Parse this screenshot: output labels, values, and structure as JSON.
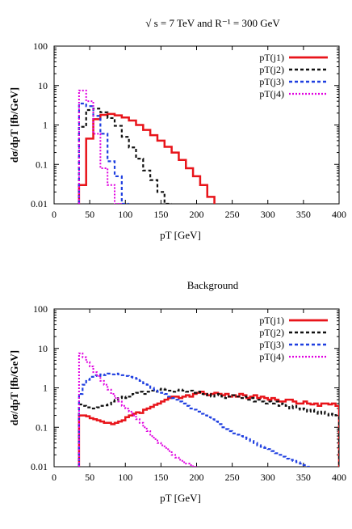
{
  "chart_data": [
    {
      "type": "line",
      "title": "√ s = 7 TeV and R⁻¹ = 300 GeV",
      "xlabel": "pT [GeV]",
      "ylabel": "dσ/dpT [fb/GeV]",
      "xlim": [
        0,
        400
      ],
      "ylim": [
        0.01,
        100
      ],
      "yscale": "log",
      "xticks": [
        "0",
        "50",
        "100",
        "150",
        "200",
        "250",
        "300",
        "350",
        "400"
      ],
      "yticks": [
        "0.01",
        "0.1",
        "1",
        "10",
        "100"
      ],
      "legend_position": "top-right",
      "bin_width": 10,
      "series": [
        {
          "name": "pT(j1)",
          "color": "#e8141a",
          "dash": "solid",
          "x_start": 35,
          "values": [
            0.03,
            0.45,
            1.4,
            1.8,
            1.9,
            1.75,
            1.55,
            1.3,
            1.0,
            0.75,
            0.55,
            0.4,
            0.28,
            0.2,
            0.13,
            0.08,
            0.05,
            0.03,
            0.015
          ]
        },
        {
          "name": "pT(j2)",
          "color": "#111111",
          "dash": "dash",
          "x_start": 35,
          "values": [
            0.9,
            2.4,
            2.6,
            2.1,
            1.5,
            0.95,
            0.5,
            0.27,
            0.14,
            0.07,
            0.04,
            0.02,
            0.01
          ]
        },
        {
          "name": "pT(j3)",
          "color": "#1f3fe0",
          "dash": "dash",
          "x_start": 35,
          "values": [
            3.5,
            3.0,
            1.7,
            0.6,
            0.12,
            0.05,
            0.01
          ]
        },
        {
          "name": "pT(j4)",
          "color": "#e000e0",
          "dash": "dot",
          "x_start": 35,
          "values": [
            7.5,
            4.0,
            0.6,
            0.08,
            0.03,
            0.01
          ]
        }
      ]
    },
    {
      "type": "line",
      "title": "Background",
      "xlabel": "pT [GeV]",
      "ylabel": "dσ/dpT [fb/GeV]",
      "xlim": [
        0,
        400
      ],
      "ylim": [
        0.01,
        100
      ],
      "yscale": "log",
      "xticks": [
        "0",
        "50",
        "100",
        "150",
        "200",
        "250",
        "300",
        "350",
        "400"
      ],
      "yticks": [
        "0.01",
        "0.1",
        "1",
        "10",
        "100"
      ],
      "legend_position": "top-right",
      "bin_width": 5,
      "series": [
        {
          "name": "pT(j1)",
          "color": "#e8141a",
          "dash": "solid",
          "x_start": 35,
          "values": [
            0.2,
            0.2,
            0.19,
            0.17,
            0.16,
            0.15,
            0.14,
            0.13,
            0.13,
            0.12,
            0.13,
            0.14,
            0.15,
            0.18,
            0.2,
            0.22,
            0.24,
            0.23,
            0.28,
            0.3,
            0.33,
            0.37,
            0.4,
            0.45,
            0.5,
            0.55,
            0.6,
            0.6,
            0.55,
            0.6,
            0.65,
            0.6,
            0.7,
            0.75,
            0.8,
            0.7,
            0.65,
            0.7,
            0.75,
            0.7,
            0.65,
            0.7,
            0.6,
            0.65,
            0.6,
            0.7,
            0.65,
            0.55,
            0.6,
            0.65,
            0.55,
            0.6,
            0.55,
            0.5,
            0.55,
            0.5,
            0.45,
            0.45,
            0.5,
            0.5,
            0.45,
            0.4,
            0.4,
            0.45,
            0.4,
            0.38,
            0.4,
            0.35,
            0.4,
            0.4,
            0.38,
            0.4,
            0.35
          ]
        },
        {
          "name": "pT(j2)",
          "color": "#111111",
          "dash": "dash",
          "x_start": 35,
          "values": [
            0.38,
            0.35,
            0.32,
            0.3,
            0.3,
            0.32,
            0.35,
            0.36,
            0.38,
            0.45,
            0.5,
            0.55,
            0.6,
            0.55,
            0.6,
            0.7,
            0.75,
            0.8,
            0.7,
            0.8,
            0.85,
            0.8,
            0.9,
            0.95,
            0.9,
            0.85,
            0.8,
            0.85,
            0.9,
            0.85,
            0.8,
            0.85,
            0.75,
            0.8,
            0.7,
            0.65,
            0.7,
            0.6,
            0.65,
            0.7,
            0.6,
            0.55,
            0.6,
            0.65,
            0.6,
            0.55,
            0.6,
            0.5,
            0.55,
            0.45,
            0.5,
            0.45,
            0.4,
            0.45,
            0.4,
            0.45,
            0.35,
            0.4,
            0.35,
            0.3,
            0.35,
            0.3,
            0.28,
            0.3,
            0.25,
            0.28,
            0.25,
            0.22,
            0.25,
            0.22,
            0.2,
            0.22,
            0.2
          ]
        },
        {
          "name": "pT(j3)",
          "color": "#1f3fe0",
          "dash": "dash",
          "x_start": 35,
          "values": [
            0.7,
            1.2,
            1.6,
            1.9,
            2.1,
            2.0,
            2.2,
            2.1,
            2.3,
            2.2,
            2.3,
            2.2,
            2.1,
            2.0,
            1.9,
            1.8,
            1.7,
            1.5,
            1.3,
            1.2,
            1.0,
            0.9,
            0.8,
            0.75,
            0.7,
            0.6,
            0.55,
            0.5,
            0.45,
            0.4,
            0.35,
            0.3,
            0.28,
            0.25,
            0.22,
            0.2,
            0.18,
            0.16,
            0.14,
            0.12,
            0.1,
            0.09,
            0.08,
            0.07,
            0.065,
            0.06,
            0.055,
            0.05,
            0.045,
            0.04,
            0.035,
            0.032,
            0.03,
            0.028,
            0.025,
            0.022,
            0.02,
            0.018,
            0.016,
            0.015,
            0.014,
            0.013,
            0.012,
            0.011,
            0.01
          ]
        },
        {
          "name": "pT(j4)",
          "color": "#e000e0",
          "dash": "dot",
          "x_start": 35,
          "values": [
            7.5,
            6.0,
            4.5,
            3.5,
            2.5,
            2.0,
            1.5,
            1.2,
            0.9,
            0.7,
            0.55,
            0.45,
            0.35,
            0.3,
            0.25,
            0.2,
            0.16,
            0.13,
            0.1,
            0.08,
            0.06,
            0.05,
            0.04,
            0.035,
            0.03,
            0.025,
            0.02,
            0.017,
            0.015,
            0.013,
            0.012,
            0.011,
            0.01
          ]
        }
      ]
    }
  ]
}
